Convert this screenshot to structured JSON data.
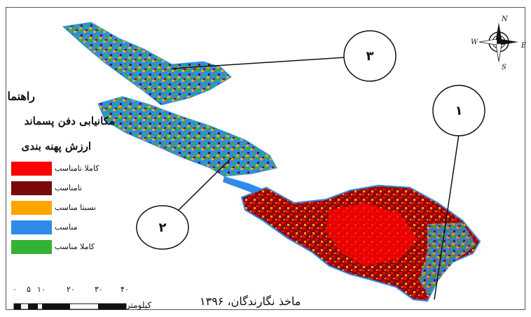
{
  "legend": {
    "title": "راهنما",
    "subtitle": "مکانیابی دفن پسماند",
    "subtitle2": "ارزش پهنه بندی",
    "items": [
      {
        "label": "کاملا نامناسب",
        "color": "#ff0000"
      },
      {
        "label": "نامناسب",
        "color": "#7a0a0a"
      },
      {
        "label": "نسبتا مناسب",
        "color": "#ffa500"
      },
      {
        "label": "مناسب",
        "color": "#2e8bea"
      },
      {
        "label": "کاملا مناسب",
        "color": "#33b233"
      }
    ]
  },
  "callouts": [
    {
      "number": "۳"
    },
    {
      "number": "۱"
    },
    {
      "number": "۲"
    }
  ],
  "compass": {
    "n": "N",
    "s": "S",
    "e": "E",
    "w": "W"
  },
  "scale": {
    "ticks": [
      "۰",
      "۵",
      "۱۰",
      "۲۰",
      "۳۰",
      "۴۰"
    ],
    "unit": "کیلومتر"
  },
  "source": "ماخذ نگارندگان، ۱۳۹۶"
}
